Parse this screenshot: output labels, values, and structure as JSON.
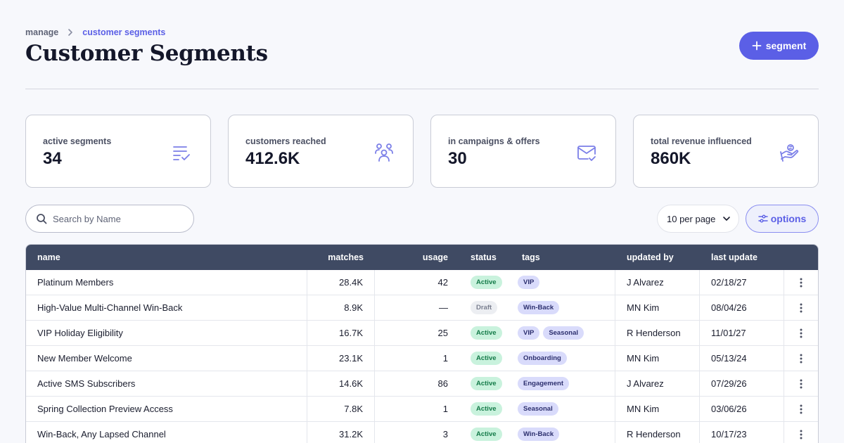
{
  "breadcrumb": {
    "parent": "manage",
    "current": "customer segments"
  },
  "page": {
    "title": "Customer Segments"
  },
  "actions": {
    "add_segment_label": "segment"
  },
  "colors": {
    "accent": "#5b5fe6",
    "header_bg": "#3f4a63",
    "active_bg": "#c9f2dd",
    "tag_bg": "#d9dbfb"
  },
  "stats": [
    {
      "label": "active segments",
      "value": "34",
      "icon": "list-check-icon"
    },
    {
      "label": "customers reached",
      "value": "412.6K",
      "icon": "users-icon"
    },
    {
      "label": "in campaigns & offers",
      "value": "30",
      "icon": "mail-check-icon"
    },
    {
      "label": "total revenue influenced",
      "value": "860K",
      "icon": "hand-money-icon"
    }
  ],
  "search": {
    "placeholder": "Search by Name",
    "value": ""
  },
  "pagination": {
    "per_page_label": "10 per page"
  },
  "options": {
    "label": "options"
  },
  "table": {
    "columns": [
      "name",
      "matches",
      "usage",
      "status",
      "tags",
      "updated by",
      "last update"
    ],
    "rows": [
      {
        "name": "Platinum Members",
        "matches": "28.4K",
        "usage": "42",
        "status": "Active",
        "tags": [
          "VIP"
        ],
        "updated_by": "J Alvarez",
        "last_update": "02/18/27"
      },
      {
        "name": "High-Value Multi-Channel Win-Back",
        "matches": "8.9K",
        "usage": "—",
        "status": "Draft",
        "tags": [
          "Win-Back"
        ],
        "updated_by": "MN Kim",
        "last_update": "08/04/26"
      },
      {
        "name": "VIP Holiday Eligibility",
        "matches": "16.7K",
        "usage": "25",
        "status": "Active",
        "tags": [
          "VIP",
          "Seasonal"
        ],
        "updated_by": "R Henderson",
        "last_update": "11/01/27"
      },
      {
        "name": "New Member Welcome",
        "matches": "23.1K",
        "usage": "1",
        "status": "Active",
        "tags": [
          "Onboarding"
        ],
        "updated_by": "MN Kim",
        "last_update": "05/13/24"
      },
      {
        "name": "Active SMS Subscribers",
        "matches": "14.6K",
        "usage": "86",
        "status": "Active",
        "tags": [
          "Engagement"
        ],
        "updated_by": "J Alvarez",
        "last_update": "07/29/26"
      },
      {
        "name": "Spring Collection Preview Access",
        "matches": "7.8K",
        "usage": "1",
        "status": "Active",
        "tags": [
          "Seasonal"
        ],
        "updated_by": "MN Kim",
        "last_update": "03/06/26"
      },
      {
        "name": "Win-Back, Any Lapsed Channel",
        "matches": "31.2K",
        "usage": "3",
        "status": "Active",
        "tags": [
          "Win-Back"
        ],
        "updated_by": "R Henderson",
        "last_update": "10/17/23"
      }
    ]
  }
}
